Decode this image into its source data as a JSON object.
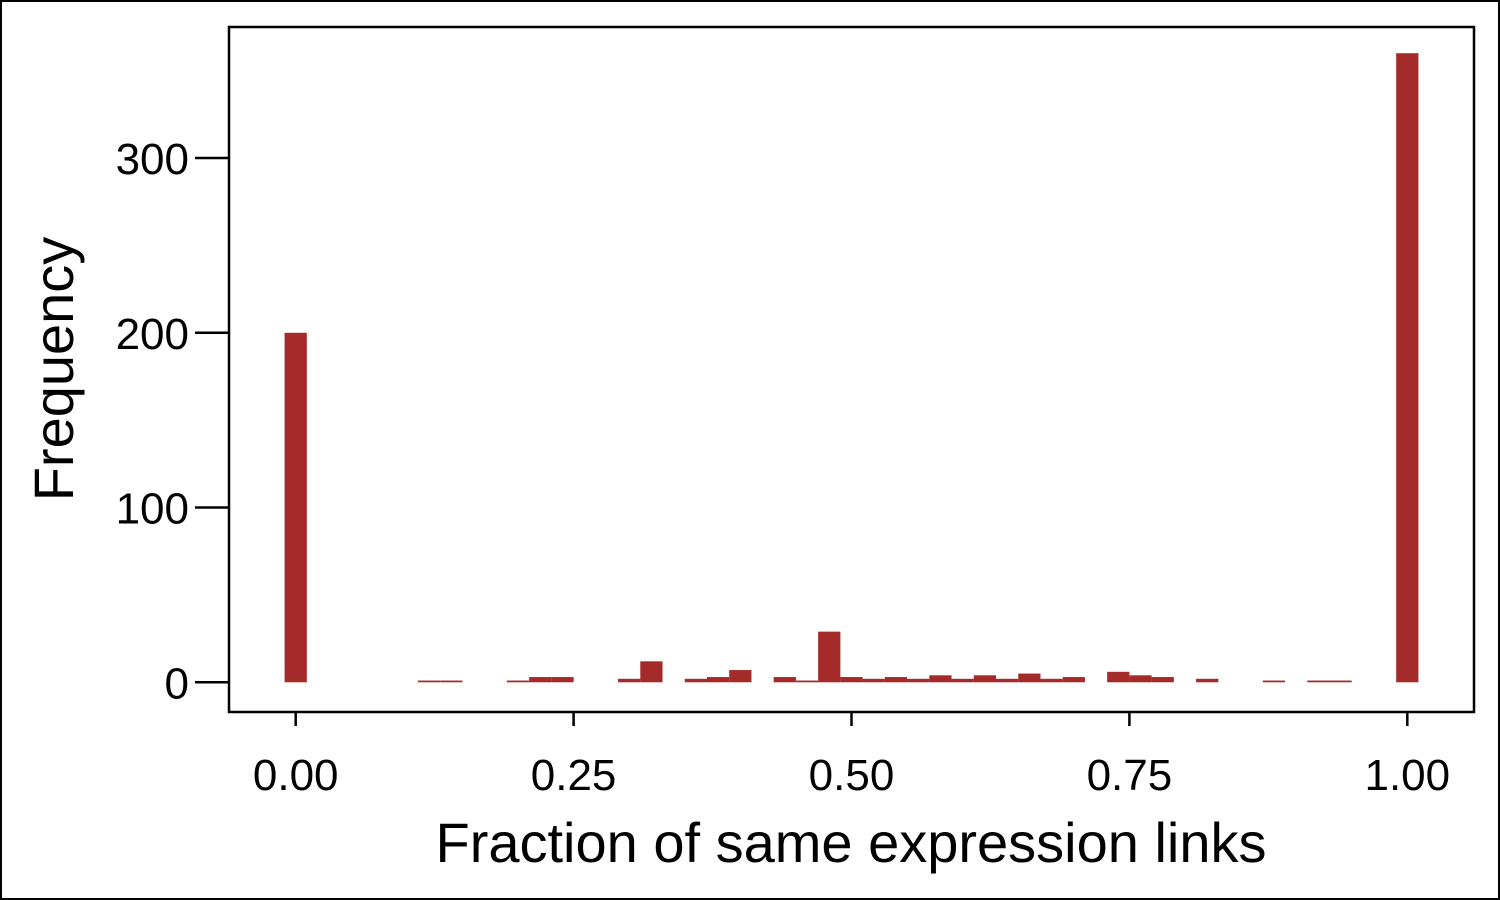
{
  "chart_data": {
    "type": "bar",
    "title": "",
    "xlabel": "Fraction of same expression links",
    "ylabel": "Frequency",
    "xlim": [
      -0.06,
      1.06
    ],
    "ylim": [
      -17,
      375
    ],
    "x_ticks": [
      {
        "value": 0.0,
        "label": "0.00"
      },
      {
        "value": 0.25,
        "label": "0.25"
      },
      {
        "value": 0.5,
        "label": "0.50"
      },
      {
        "value": 0.75,
        "label": "0.75"
      },
      {
        "value": 1.0,
        "label": "1.00"
      }
    ],
    "y_ticks": [
      {
        "value": 0,
        "label": "0"
      },
      {
        "value": 100,
        "label": "100"
      },
      {
        "value": 200,
        "label": "200"
      },
      {
        "value": 300,
        "label": "300"
      }
    ],
    "bin_width": 0.02,
    "color": "#a52a2a",
    "grid": false,
    "legend": "none",
    "bins": [
      {
        "x": 0.0,
        "y": 200
      },
      {
        "x": 0.12,
        "y": 1
      },
      {
        "x": 0.14,
        "y": 1
      },
      {
        "x": 0.2,
        "y": 1
      },
      {
        "x": 0.22,
        "y": 3
      },
      {
        "x": 0.24,
        "y": 3
      },
      {
        "x": 0.3,
        "y": 2
      },
      {
        "x": 0.32,
        "y": 12
      },
      {
        "x": 0.36,
        "y": 2
      },
      {
        "x": 0.38,
        "y": 3
      },
      {
        "x": 0.4,
        "y": 7
      },
      {
        "x": 0.44,
        "y": 3
      },
      {
        "x": 0.46,
        "y": 1
      },
      {
        "x": 0.48,
        "y": 29
      },
      {
        "x": 0.5,
        "y": 3
      },
      {
        "x": 0.52,
        "y": 2
      },
      {
        "x": 0.54,
        "y": 3
      },
      {
        "x": 0.56,
        "y": 2
      },
      {
        "x": 0.58,
        "y": 4
      },
      {
        "x": 0.6,
        "y": 2
      },
      {
        "x": 0.62,
        "y": 4
      },
      {
        "x": 0.64,
        "y": 2
      },
      {
        "x": 0.66,
        "y": 5
      },
      {
        "x": 0.68,
        "y": 2
      },
      {
        "x": 0.7,
        "y": 3
      },
      {
        "x": 0.74,
        "y": 6
      },
      {
        "x": 0.76,
        "y": 4
      },
      {
        "x": 0.78,
        "y": 3
      },
      {
        "x": 0.82,
        "y": 2
      },
      {
        "x": 0.88,
        "y": 1
      },
      {
        "x": 0.92,
        "y": 1
      },
      {
        "x": 0.94,
        "y": 1
      },
      {
        "x": 1.0,
        "y": 360
      }
    ]
  }
}
